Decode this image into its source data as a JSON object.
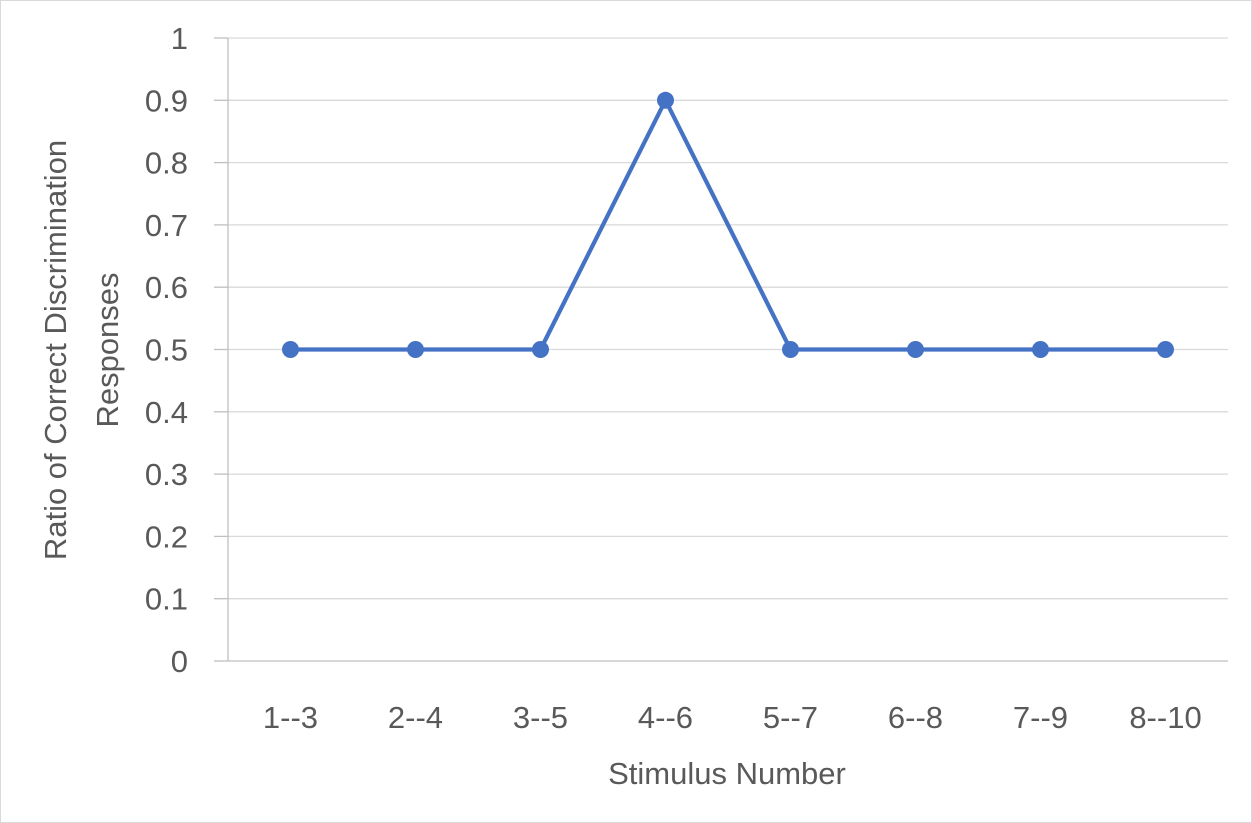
{
  "chart_data": {
    "type": "line",
    "title": "",
    "xlabel": "Stimulus Number",
    "ylabel_lines": [
      "Ratio of Correct Discrimination",
      "Responses"
    ],
    "categories": [
      "1--3",
      "2--4",
      "3--5",
      "4--6",
      "5--7",
      "6--8",
      "7--9",
      "8--10"
    ],
    "series": [
      {
        "values": [
          0.5,
          0.5,
          0.5,
          0.9,
          0.5,
          0.5,
          0.5,
          0.5
        ],
        "color": "#4472c4"
      }
    ],
    "ylim": [
      0,
      1
    ],
    "yticks": [
      "0",
      "0.1",
      "0.2",
      "0.3",
      "0.4",
      "0.5",
      "0.6",
      "0.7",
      "0.8",
      "0.9",
      "1"
    ],
    "grid": true,
    "legend": "none",
    "colors": {
      "gridline": "#d9d9d9",
      "axis": "#bfbfbf",
      "text": "#595959"
    }
  }
}
